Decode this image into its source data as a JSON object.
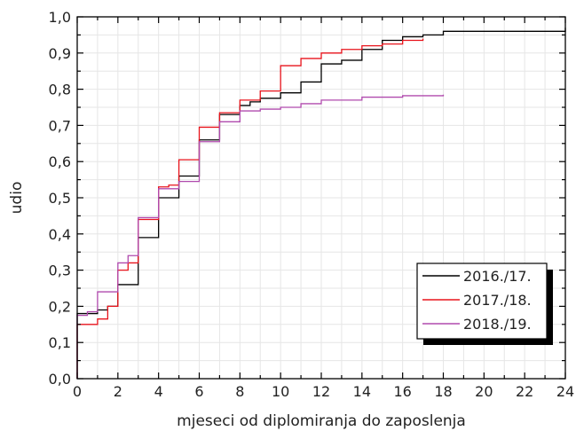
{
  "chart_data": {
    "type": "line",
    "step": true,
    "xlabel": "mjeseci od diplomiranja do zaposlenja",
    "ylabel": "udio",
    "xlim": [
      0,
      24
    ],
    "ylim": [
      0,
      1.0
    ],
    "xticks": [
      0,
      2,
      4,
      6,
      8,
      10,
      12,
      14,
      16,
      18,
      20,
      22,
      24
    ],
    "xtick_labels": [
      "0",
      "2",
      "4",
      "6",
      "8",
      "10",
      "12",
      "14",
      "16",
      "18",
      "20",
      "22",
      "24"
    ],
    "yticks": [
      0,
      0.1,
      0.2,
      0.3,
      0.4,
      0.5,
      0.6,
      0.7,
      0.8,
      0.9,
      1.0
    ],
    "ytick_labels": [
      "0,0",
      "0,1",
      "0,2",
      "0,3",
      "0,4",
      "0,5",
      "0,6",
      "0,7",
      "0,8",
      "0,9",
      "1,0"
    ],
    "grid": true,
    "legend_position": "bottom-right",
    "series": [
      {
        "name": "2016./17.",
        "color": "#000000",
        "points": [
          [
            0,
            0
          ],
          [
            0,
            0.18
          ],
          [
            1,
            0.19
          ],
          [
            1.5,
            0.2
          ],
          [
            2,
            0.26
          ],
          [
            3,
            0.27
          ],
          [
            3,
            0.39
          ],
          [
            4,
            0.4
          ],
          [
            4,
            0.5
          ],
          [
            5,
            0.51
          ],
          [
            5,
            0.56
          ],
          [
            6,
            0.565
          ],
          [
            6,
            0.66
          ],
          [
            7,
            0.67
          ],
          [
            7,
            0.73
          ],
          [
            8,
            0.735
          ],
          [
            8,
            0.755
          ],
          [
            8.5,
            0.765
          ],
          [
            9,
            0.775
          ],
          [
            10,
            0.79
          ],
          [
            11,
            0.82
          ],
          [
            12,
            0.87
          ],
          [
            13,
            0.88
          ],
          [
            14,
            0.89
          ],
          [
            14,
            0.91
          ],
          [
            15,
            0.935
          ],
          [
            16,
            0.945
          ],
          [
            17,
            0.95
          ],
          [
            18,
            0.96
          ],
          [
            24,
            0.97
          ]
        ]
      },
      {
        "name": "2017./18.",
        "color": "#e8131b",
        "points": [
          [
            0,
            0
          ],
          [
            0,
            0.15
          ],
          [
            1,
            0.165
          ],
          [
            1.5,
            0.2
          ],
          [
            2,
            0.3
          ],
          [
            2.5,
            0.32
          ],
          [
            3,
            0.44
          ],
          [
            4,
            0.45
          ],
          [
            4,
            0.53
          ],
          [
            4.5,
            0.535
          ],
          [
            5,
            0.605
          ],
          [
            6,
            0.62
          ],
          [
            6,
            0.695
          ],
          [
            7,
            0.7
          ],
          [
            7,
            0.735
          ],
          [
            8,
            0.74
          ],
          [
            8,
            0.77
          ],
          [
            9,
            0.795
          ],
          [
            10,
            0.865
          ],
          [
            11,
            0.885
          ],
          [
            12,
            0.9
          ],
          [
            13,
            0.91
          ],
          [
            14,
            0.92
          ],
          [
            15,
            0.925
          ],
          [
            16,
            0.935
          ],
          [
            17,
            0.94
          ]
        ]
      },
      {
        "name": "2018./19.",
        "color": "#b04aae",
        "points": [
          [
            0,
            0
          ],
          [
            0,
            0.175
          ],
          [
            0.5,
            0.185
          ],
          [
            1,
            0.24
          ],
          [
            2,
            0.32
          ],
          [
            2.5,
            0.34
          ],
          [
            3,
            0.445
          ],
          [
            4,
            0.455
          ],
          [
            4,
            0.525
          ],
          [
            5,
            0.545
          ],
          [
            6,
            0.57
          ],
          [
            6,
            0.655
          ],
          [
            7,
            0.665
          ],
          [
            7,
            0.71
          ],
          [
            8,
            0.715
          ],
          [
            8,
            0.74
          ],
          [
            9,
            0.745
          ],
          [
            10,
            0.75
          ],
          [
            11,
            0.76
          ],
          [
            12,
            0.77
          ],
          [
            14,
            0.778
          ],
          [
            16,
            0.782
          ],
          [
            18,
            0.785
          ]
        ]
      }
    ]
  }
}
